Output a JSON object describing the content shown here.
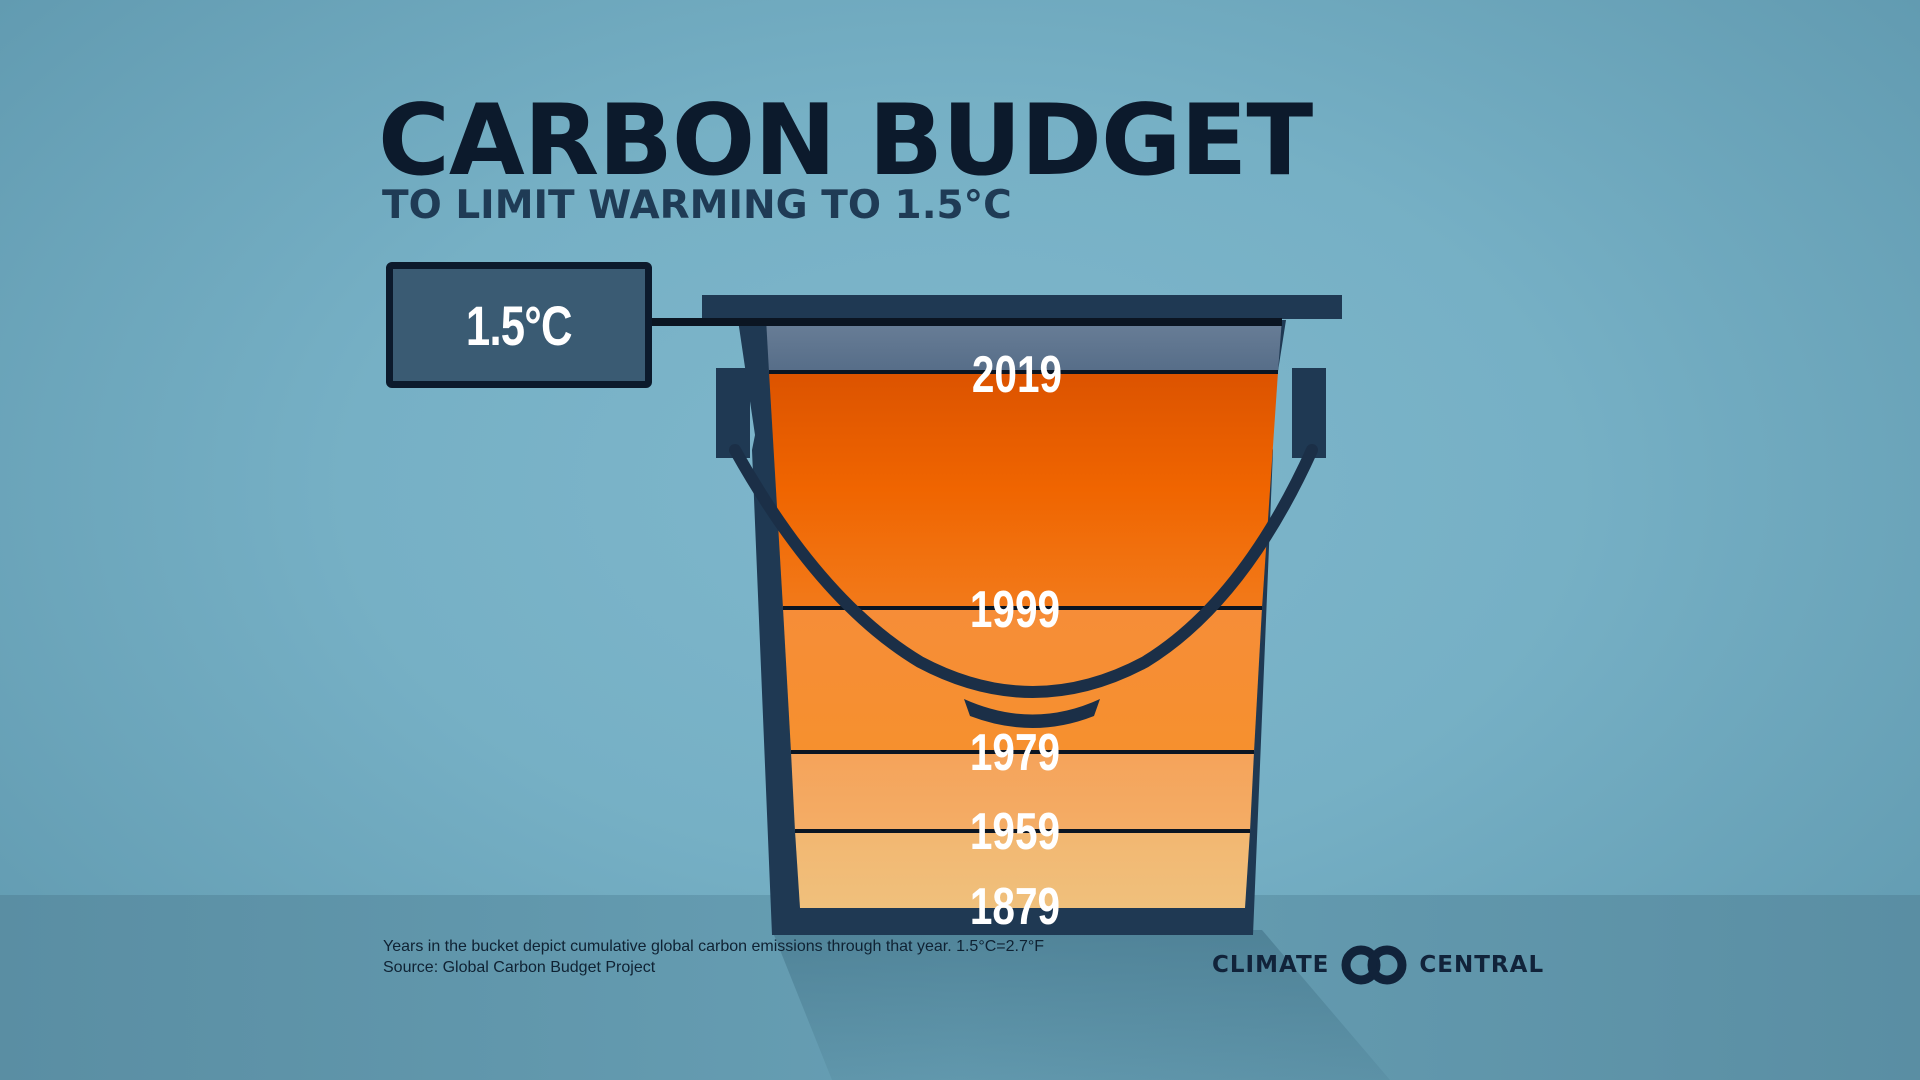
{
  "header": {
    "title": "CARBON BUDGET",
    "subtitle": "TO LIMIT WARMING TO 1.5°C"
  },
  "limit_label": "1.5°C",
  "bucket_layers": [
    {
      "year": "2019",
      "color": "#5c7390"
    },
    {
      "year": "1999",
      "color": "#ea6200"
    },
    {
      "year": "1979",
      "color": "#f58c30"
    },
    {
      "year": "1959",
      "color": "#f4a460"
    },
    {
      "year": "1879",
      "color": "#f0bb77"
    }
  ],
  "footnote": {
    "line1": "Years in the bucket depict cumulative global carbon emissions through that year. 1.5°C=2.7°F",
    "line2": "Source: Global Carbon Budget Project"
  },
  "brand": {
    "left": "CLIMATE",
    "right": "CENTRAL",
    "logo_icon": "infinity-rings-icon"
  },
  "colors": {
    "bucket_outline": "#1f3953",
    "dark_text": "#0c1a2c",
    "background": "#76b0c5"
  }
}
